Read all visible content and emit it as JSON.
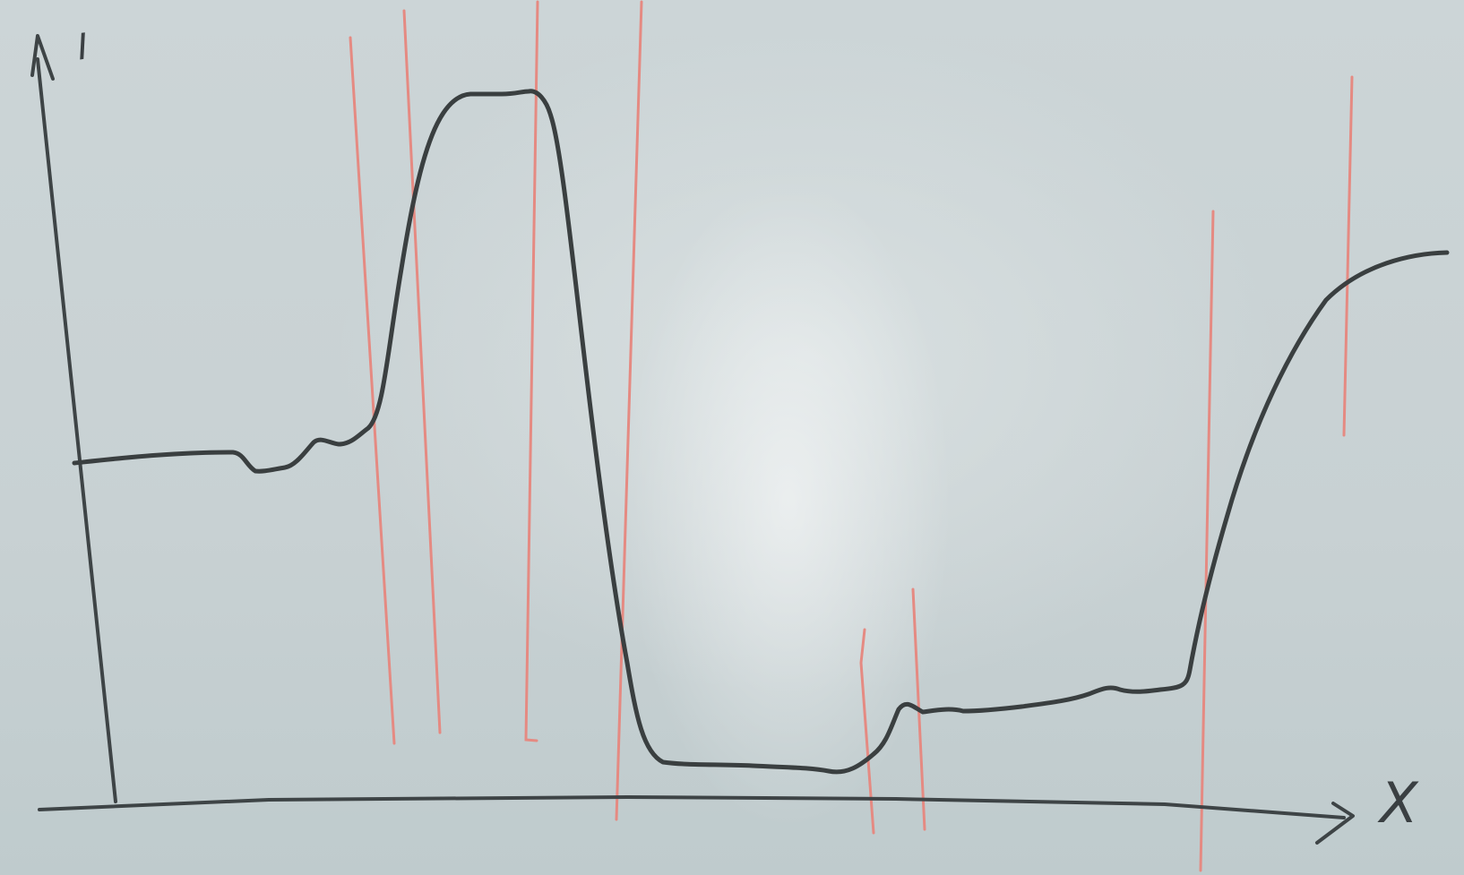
{
  "axes": {
    "y_label": "I",
    "x_label": "X"
  },
  "colors": {
    "board": "#c9d2d4",
    "ink": "#3a3f40",
    "marker_red": "#e58a82"
  }
}
